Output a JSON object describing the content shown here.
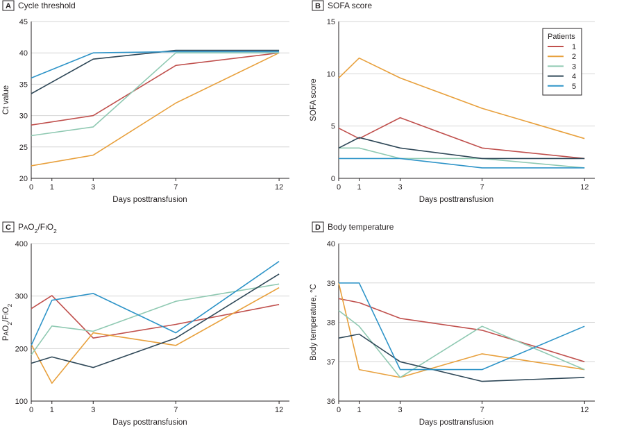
{
  "series_colors": [
    "#c0504d",
    "#e8a03c",
    "#8fc9b2",
    "#2f4858",
    "#2e94c8"
  ],
  "legend": {
    "title": "Patients",
    "items": [
      "1",
      "2",
      "3",
      "4",
      "5"
    ]
  },
  "chart_data": [
    {
      "type": "line",
      "panel": "A",
      "title": "Cycle threshold",
      "xlabel": "Days posttransfusion",
      "ylabel": "Ct value",
      "xlim": [
        0,
        12.5
      ],
      "ylim": [
        20,
        45
      ],
      "x_ticks": [
        0,
        1,
        3,
        7,
        12
      ],
      "y_ticks": [
        20,
        25,
        30,
        35,
        40,
        45
      ],
      "grid": true,
      "series": [
        {
          "name": "1",
          "points": [
            [
              0,
              28.5
            ],
            [
              3,
              30
            ],
            [
              7,
              38
            ],
            [
              12,
              40
            ]
          ]
        },
        {
          "name": "2",
          "points": [
            [
              0,
              22
            ],
            [
              3,
              23.7
            ],
            [
              7,
              32
            ],
            [
              12,
              40
            ]
          ]
        },
        {
          "name": "3",
          "points": [
            [
              0,
              26.8
            ],
            [
              3,
              28.2
            ],
            [
              7,
              40
            ],
            [
              12,
              40
            ]
          ]
        },
        {
          "name": "4",
          "points": [
            [
              0,
              33.5
            ],
            [
              3,
              39
            ],
            [
              7,
              40.4
            ],
            [
              12,
              40.4
            ]
          ]
        },
        {
          "name": "5",
          "points": [
            [
              0,
              36
            ],
            [
              3,
              40
            ],
            [
              7,
              40.2
            ],
            [
              12,
              40.2
            ]
          ]
        }
      ]
    },
    {
      "type": "line",
      "panel": "B",
      "title": "SOFA score",
      "xlabel": "Days posttransfusion",
      "ylabel": "SOFA score",
      "xlim": [
        0,
        12.5
      ],
      "ylim": [
        0,
        15
      ],
      "x_ticks": [
        0,
        1,
        3,
        7,
        12
      ],
      "y_ticks": [
        0,
        5,
        10,
        15
      ],
      "grid": true,
      "legend_position": "top-right",
      "series": [
        {
          "name": "1",
          "points": [
            [
              0,
              4.8
            ],
            [
              1,
              3.8
            ],
            [
              3,
              5.8
            ],
            [
              7,
              2.9
            ],
            [
              12,
              1.9
            ]
          ]
        },
        {
          "name": "2",
          "points": [
            [
              0,
              9.6
            ],
            [
              1,
              11.5
            ],
            [
              3,
              9.6
            ],
            [
              7,
              6.7
            ],
            [
              12,
              3.8
            ]
          ]
        },
        {
          "name": "3",
          "points": [
            [
              0,
              2.9
            ],
            [
              1,
              2.9
            ],
            [
              3,
              1.9
            ],
            [
              7,
              1.9
            ],
            [
              12,
              1
            ]
          ]
        },
        {
          "name": "4",
          "points": [
            [
              0,
              2.9
            ],
            [
              1,
              3.9
            ],
            [
              3,
              2.9
            ],
            [
              7,
              1.9
            ],
            [
              12,
              1.9
            ]
          ]
        },
        {
          "name": "5",
          "points": [
            [
              0,
              1.9
            ],
            [
              1,
              1.9
            ],
            [
              3,
              1.9
            ],
            [
              7,
              1
            ],
            [
              12,
              1
            ]
          ]
        }
      ]
    },
    {
      "type": "line",
      "panel": "C",
      "title": "PaO2/FiO2",
      "xlabel": "Days posttransfusion",
      "ylabel": "PaO2/FiO2",
      "xlim": [
        0,
        12.5
      ],
      "ylim": [
        100,
        400
      ],
      "x_ticks": [
        0,
        1,
        3,
        7,
        12
      ],
      "y_ticks": [
        100,
        200,
        300,
        400
      ],
      "grid": true,
      "series": [
        {
          "name": "1",
          "points": [
            [
              0,
              276
            ],
            [
              1,
              301
            ],
            [
              3,
              220
            ],
            [
              7,
              246
            ],
            [
              12,
              284
            ]
          ]
        },
        {
          "name": "2",
          "points": [
            [
              0,
              208
            ],
            [
              1,
              134
            ],
            [
              3,
              230
            ],
            [
              7,
              206
            ],
            [
              12,
              316
            ]
          ]
        },
        {
          "name": "3",
          "points": [
            [
              0,
              188
            ],
            [
              1,
              243
            ],
            [
              3,
              233
            ],
            [
              7,
              290
            ],
            [
              12,
              323
            ]
          ]
        },
        {
          "name": "4",
          "points": [
            [
              0,
              172
            ],
            [
              1,
              184
            ],
            [
              3,
              164
            ],
            [
              7,
              220
            ],
            [
              12,
              342
            ]
          ]
        },
        {
          "name": "5",
          "points": [
            [
              0,
              206
            ],
            [
              1,
              292
            ],
            [
              3,
              305
            ],
            [
              7,
              230
            ],
            [
              12,
              366
            ]
          ]
        }
      ]
    },
    {
      "type": "line",
      "panel": "D",
      "title": "Body temperature",
      "xlabel": "Days posttransfusion",
      "ylabel": "Body temperature, °C",
      "xlim": [
        0,
        12.5
      ],
      "ylim": [
        36,
        40
      ],
      "x_ticks": [
        0,
        1,
        3,
        7,
        12
      ],
      "y_ticks": [
        36,
        37,
        38,
        39,
        40
      ],
      "grid": true,
      "series": [
        {
          "name": "1",
          "points": [
            [
              0,
              38.6
            ],
            [
              1,
              38.5
            ],
            [
              3,
              38.1
            ],
            [
              7,
              37.8
            ],
            [
              12,
              37
            ]
          ]
        },
        {
          "name": "2",
          "points": [
            [
              0,
              39
            ],
            [
              1,
              36.8
            ],
            [
              3,
              36.6
            ],
            [
              7,
              37.2
            ],
            [
              12,
              36.8
            ]
          ]
        },
        {
          "name": "3",
          "points": [
            [
              0,
              38.3
            ],
            [
              1,
              37.9
            ],
            [
              3,
              36.6
            ],
            [
              7,
              37.9
            ],
            [
              12,
              36.8
            ]
          ]
        },
        {
          "name": "4",
          "points": [
            [
              0,
              37.6
            ],
            [
              1,
              37.7
            ],
            [
              3,
              37
            ],
            [
              7,
              36.5
            ],
            [
              12,
              36.6
            ]
          ]
        },
        {
          "name": "5",
          "points": [
            [
              0,
              39
            ],
            [
              1,
              39
            ],
            [
              3,
              36.8
            ],
            [
              7,
              36.8
            ],
            [
              12,
              37.9
            ]
          ]
        }
      ]
    }
  ]
}
